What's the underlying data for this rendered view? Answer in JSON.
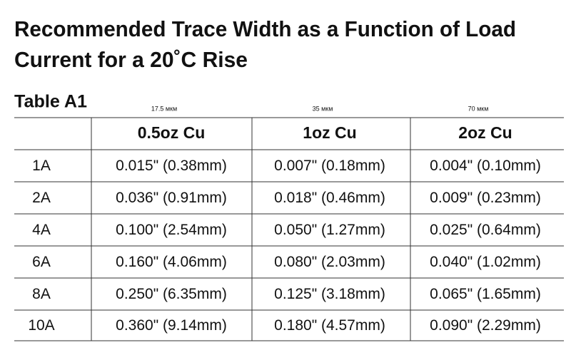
{
  "header": {
    "title_lines": [
      "Recommended Trace Width as a Function of Load",
      "Current for a 20˚C Rise"
    ],
    "table_label": "Table A1"
  },
  "table": {
    "thickness": [
      "17.5 мкм",
      "35 мкм",
      "70 мкм"
    ],
    "columns": [
      "0.5oz Cu",
      "1oz Cu",
      "2oz Cu"
    ],
    "rows": [
      [
        "1A",
        "0.015\" (0.38mm)",
        "0.007\" (0.18mm)",
        "0.004\" (0.10mm)"
      ],
      [
        "2A",
        "0.036\" (0.91mm)",
        "0.018\" (0.46mm)",
        "0.009\" (0.23mm)"
      ],
      [
        "4A",
        "0.100\" (2.54mm)",
        "0.050\" (1.27mm)",
        "0.025\" (0.64mm)"
      ],
      [
        "6A",
        "0.160\" (4.06mm)",
        "0.080\" (2.03mm)",
        "0.040\" (1.02mm)"
      ],
      [
        "8A",
        "0.250\" (6.35mm)",
        "0.125\" (3.18mm)",
        "0.065\" (1.65mm)"
      ],
      [
        "10A",
        "0.360\" (9.14mm)",
        "0.180\" (4.57mm)",
        "0.090\" (2.29mm)"
      ]
    ]
  }
}
